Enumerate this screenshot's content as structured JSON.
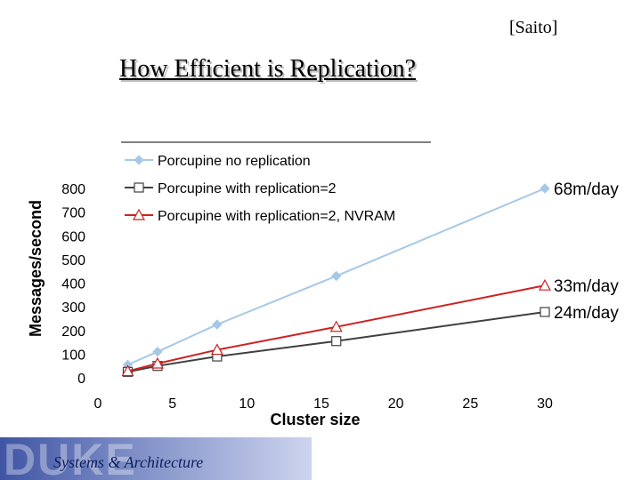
{
  "citation": "[Saito]",
  "slide_title": "How Efficient is Replication?",
  "footer": {
    "logo_text": "DUKE",
    "subtitle": "Systems & Architecture"
  },
  "chart_data": {
    "type": "line",
    "xlabel": "Cluster size",
    "ylabel": "Messages/second",
    "xlim": [
      0,
      30
    ],
    "ylim": [
      0,
      800
    ],
    "xticks": [
      0,
      5,
      10,
      15,
      20,
      25,
      30
    ],
    "yticks": [
      0,
      100,
      200,
      300,
      400,
      500,
      600,
      700,
      800
    ],
    "grid": false,
    "legend_position": "top",
    "series": [
      {
        "name": "Porcupine no replication",
        "color": "#a6c8e8",
        "marker": "diamond",
        "x": [
          2,
          4,
          8,
          16,
          30
        ],
        "y": [
          55,
          110,
          225,
          430,
          800
        ],
        "end_label": "68m/day"
      },
      {
        "name": "Porcupine with replication=2",
        "color": "#404040",
        "marker": "square",
        "x": [
          2,
          4,
          8,
          16,
          30
        ],
        "y": [
          25,
          50,
          90,
          155,
          278
        ],
        "end_label": "24m/day"
      },
      {
        "name": "Porcupine with replication=2, NVRAM",
        "color": "#cc2222",
        "marker": "triangle",
        "x": [
          2,
          4,
          8,
          16,
          30
        ],
        "y": [
          28,
          60,
          118,
          215,
          390
        ],
        "end_label": "33m/day"
      }
    ]
  }
}
